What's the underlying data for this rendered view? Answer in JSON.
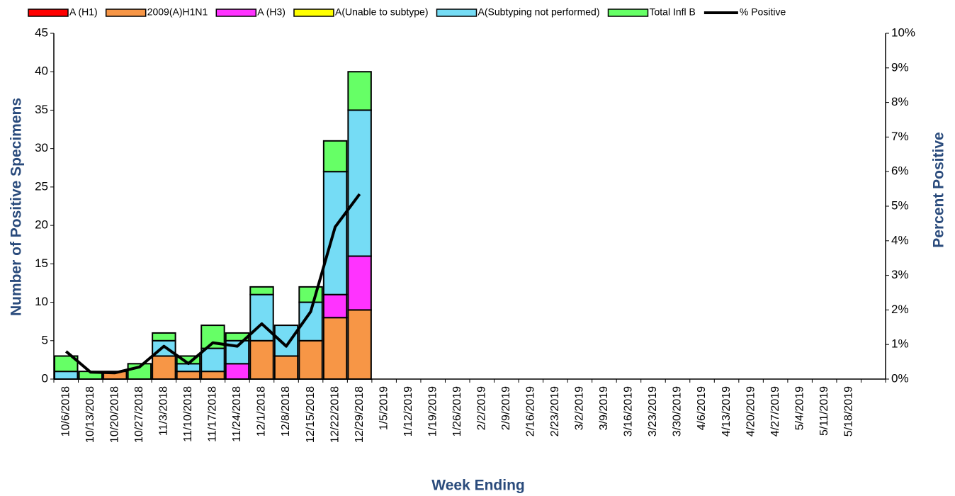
{
  "chart_data": {
    "type": "bar",
    "stacked": true,
    "x_label": "Week Ending",
    "y_label": "Number of  Positive Specimens",
    "y2_label": "Percent Positive",
    "categories": [
      "10/6/2018",
      "10/13/2018",
      "10/20/2018",
      "10/27/2018",
      "11/3/2018",
      "11/10/2018",
      "11/17/2018",
      "11/24/2018",
      "12/1/2018",
      "12/8/2018",
      "12/15/2018",
      "12/22/2018",
      "12/29/2018",
      "1/5/2019",
      "1/12/2019",
      "1/19/2019",
      "1/26/2019",
      "2/2/2019",
      "2/9/2019",
      "2/16/2019",
      "2/23/2019",
      "3/2/2019",
      "3/9/2019",
      "3/16/2019",
      "3/23/2019",
      "3/30/2019",
      "4/6/2019",
      "4/13/2019",
      "4/20/2019",
      "4/27/2019",
      "5/4/2019",
      "5/11/2019",
      "5/18/2019",
      null
    ],
    "series": [
      {
        "name": "A (H1)",
        "color": "#ff0000",
        "values": [
          0,
          0,
          0,
          0,
          0,
          0,
          0,
          0,
          0,
          0,
          0,
          0,
          0,
          null,
          null,
          null,
          null,
          null,
          null,
          null,
          null,
          null,
          null,
          null,
          null,
          null,
          null,
          null,
          null,
          null,
          null,
          null,
          null,
          null
        ]
      },
      {
        "name": "2009(A)H1N1",
        "color": "#f79646",
        "values": [
          0,
          0,
          1,
          0,
          3,
          1,
          1,
          0,
          5,
          3,
          5,
          8,
          9,
          null,
          null,
          null,
          null,
          null,
          null,
          null,
          null,
          null,
          null,
          null,
          null,
          null,
          null,
          null,
          null,
          null,
          null,
          null,
          null,
          null
        ]
      },
      {
        "name": "A (H3)",
        "color": "#ff33ff",
        "values": [
          0,
          0,
          0,
          0,
          0,
          0,
          0,
          2,
          0,
          0,
          0,
          3,
          7,
          null,
          null,
          null,
          null,
          null,
          null,
          null,
          null,
          null,
          null,
          null,
          null,
          null,
          null,
          null,
          null,
          null,
          null,
          null,
          null,
          null
        ]
      },
      {
        "name": "A(Unable to subtype)",
        "color": "#ffff00",
        "values": [
          0,
          0,
          0,
          0,
          0,
          0,
          0,
          0,
          0,
          0,
          0,
          0,
          0,
          null,
          null,
          null,
          null,
          null,
          null,
          null,
          null,
          null,
          null,
          null,
          null,
          null,
          null,
          null,
          null,
          null,
          null,
          null,
          null,
          null
        ]
      },
      {
        "name": "A(Subtyping not performed)",
        "color": "#75dcf5",
        "values": [
          1,
          0,
          0,
          0,
          2,
          1,
          3,
          3,
          6,
          4,
          5,
          16,
          19,
          null,
          null,
          null,
          null,
          null,
          null,
          null,
          null,
          null,
          null,
          null,
          null,
          null,
          null,
          null,
          null,
          null,
          null,
          null,
          null,
          null
        ]
      },
      {
        "name": "Total Infl B",
        "color": "#66ff66",
        "values": [
          2,
          1,
          0,
          2,
          1,
          1,
          3,
          1,
          1,
          0,
          2,
          4,
          5,
          null,
          null,
          null,
          null,
          null,
          null,
          null,
          null,
          null,
          null,
          null,
          null,
          null,
          null,
          null,
          null,
          null,
          null,
          null,
          null,
          null
        ]
      },
      {
        "name": "% Positive",
        "color": "#000000",
        "type": "line",
        "axis": "y2",
        "values": [
          0.8,
          0.2,
          0.18,
          0.35,
          0.95,
          0.45,
          1.05,
          0.95,
          1.6,
          0.95,
          1.95,
          4.4,
          5.35,
          null,
          null,
          null,
          null,
          null,
          null,
          null,
          null,
          null,
          null,
          null,
          null,
          null,
          null,
          null,
          null,
          null,
          null,
          null,
          null,
          null
        ]
      }
    ],
    "ylim": [
      0,
      45
    ],
    "yticks": [
      0,
      5,
      10,
      15,
      20,
      25,
      30,
      35,
      40,
      45
    ],
    "y2lim": [
      0,
      10
    ],
    "y2ticks": [
      {
        "value": 0,
        "label": "0%"
      },
      {
        "value": 1,
        "label": "1%"
      },
      {
        "value": 2,
        "label": "2%"
      },
      {
        "value": 3,
        "label": "3%"
      },
      {
        "value": 4,
        "label": "4%"
      },
      {
        "value": 5,
        "label": "5%"
      },
      {
        "value": 6,
        "label": "6%"
      },
      {
        "value": 7,
        "label": "7%"
      },
      {
        "value": 8,
        "label": "8%"
      },
      {
        "value": 9,
        "label": "9%"
      },
      {
        "value": 10,
        "label": "10%"
      }
    ],
    "legend": "top"
  }
}
